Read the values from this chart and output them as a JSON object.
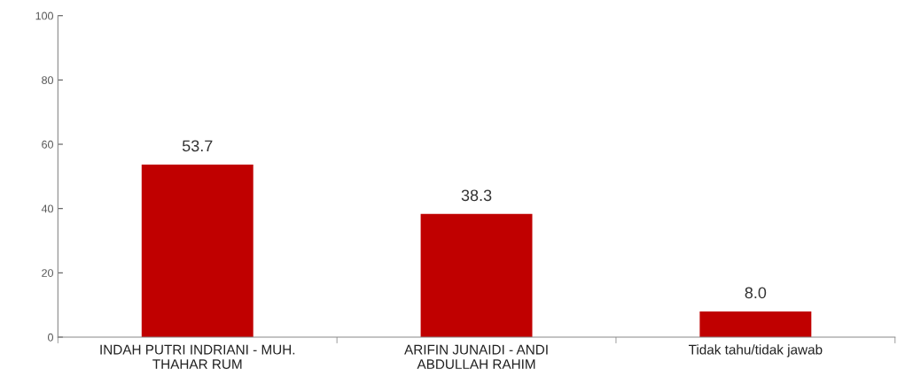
{
  "chart_data": {
    "type": "bar",
    "categories": [
      "INDAH PUTRI INDRIANI - MUH.\nTHAHAR RUM",
      "ARIFIN JUNAIDI - ANDI\nABDULLAH RAHIM",
      "Tidak tahu/tidak jawab"
    ],
    "values": [
      53.7,
      38.3,
      8.0
    ],
    "color": "#c00000",
    "value_labels": [
      "53.7",
      "38.3",
      "8.0"
    ],
    "ylim": [
      0,
      100
    ],
    "yticks": [
      0,
      20,
      40,
      60,
      80,
      100
    ],
    "grid": false,
    "legend": false
  }
}
